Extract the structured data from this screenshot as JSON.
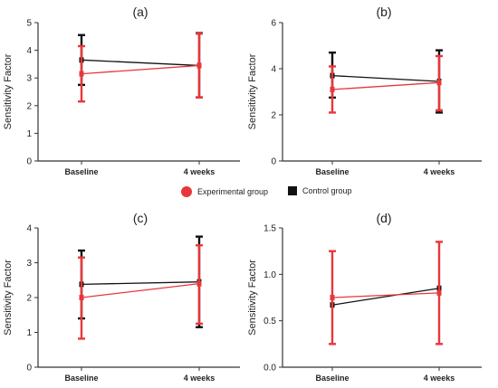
{
  "colors": {
    "experimental": "#e8373b",
    "control": "#111111"
  },
  "legend": {
    "experimental_label": "Experimental group",
    "control_label": "Control group"
  },
  "chart_data": [
    {
      "type": "line",
      "title": "(a)",
      "ylabel": "Sensitivity Factor",
      "categories": [
        "Baseline",
        "4 weeks"
      ],
      "ylim": [
        0,
        5
      ],
      "yticks": [
        "0",
        "1",
        "2",
        "3",
        "4",
        "5"
      ],
      "series": [
        {
          "name": "Experimental group",
          "values": [
            3.15,
            3.45
          ],
          "err_low": [
            2.15,
            2.3
          ],
          "err_high": [
            4.15,
            4.6
          ]
        },
        {
          "name": "Control group",
          "values": [
            3.65,
            3.45
          ],
          "err_low": [
            2.75,
            2.3
          ],
          "err_high": [
            4.55,
            4.62
          ]
        }
      ]
    },
    {
      "type": "line",
      "title": "(b)",
      "ylabel": "Sensitivity Factor",
      "categories": [
        "Baseline",
        "4 weeks"
      ],
      "ylim": [
        0,
        6
      ],
      "yticks": [
        "0",
        "2",
        "4",
        "6"
      ],
      "series": [
        {
          "name": "Experimental group",
          "values": [
            3.1,
            3.4
          ],
          "err_low": [
            2.1,
            2.2
          ],
          "err_high": [
            4.1,
            4.55
          ]
        },
        {
          "name": "Control group",
          "values": [
            3.7,
            3.45
          ],
          "err_low": [
            2.75,
            2.1
          ],
          "err_high": [
            4.7,
            4.8
          ]
        }
      ]
    },
    {
      "type": "line",
      "title": "(c)",
      "ylabel": "Sensitivity Factor",
      "categories": [
        "Baseline",
        "4 weeks"
      ],
      "ylim": [
        0,
        4
      ],
      "yticks": [
        "0",
        "1",
        "2",
        "3",
        "4"
      ],
      "series": [
        {
          "name": "Experimental group",
          "values": [
            2.0,
            2.4
          ],
          "err_low": [
            0.82,
            1.25
          ],
          "err_high": [
            3.15,
            3.5
          ]
        },
        {
          "name": "Control group",
          "values": [
            2.38,
            2.45
          ],
          "err_low": [
            1.4,
            1.15
          ],
          "err_high": [
            3.35,
            3.75
          ]
        }
      ]
    },
    {
      "type": "line",
      "title": "(d)",
      "ylabel": "Sensitivity Factor",
      "categories": [
        "Baseline",
        "4 weeks"
      ],
      "ylim": [
        0,
        1.5
      ],
      "yticks": [
        "0.0",
        "0.5",
        "1.0",
        "1.5"
      ],
      "series": [
        {
          "name": "Experimental group",
          "values": [
            0.75,
            0.8
          ],
          "err_low": [
            0.25,
            0.25
          ],
          "err_high": [
            1.25,
            1.35
          ]
        },
        {
          "name": "Control group",
          "values": [
            0.67,
            0.85
          ],
          "err_low": [
            0.67,
            0.85
          ],
          "err_high": [
            0.67,
            0.85
          ]
        }
      ]
    }
  ]
}
